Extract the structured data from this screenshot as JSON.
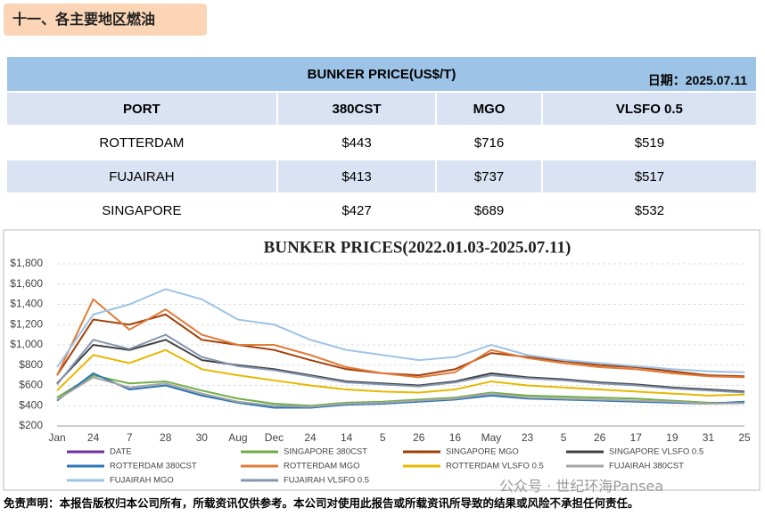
{
  "header": {
    "title": "十一、各主要地区燃油"
  },
  "table": {
    "title": "BUNKER PRICE(US$/T)",
    "date": "日期：2025.07.11",
    "columns": [
      "PORT",
      "380CST",
      "MGO",
      "VLSFO 0.5"
    ],
    "rows": [
      [
        "ROTTERDAM",
        "$443",
        "$716",
        "$519"
      ],
      [
        "FUJAIRAH",
        "$413",
        "$737",
        "$517"
      ],
      [
        "SINGAPORE",
        "$427",
        "$689",
        "$532"
      ]
    ]
  },
  "chart_data": {
    "type": "line",
    "title": "BUNKER PRICES(2022.01.03-2025.07.11)",
    "categories": [
      "Jan",
      "24",
      "7",
      "28",
      "30",
      "Aug",
      "Dec",
      "24",
      "14",
      "5",
      "26",
      "16",
      "May",
      "23",
      "5",
      "26",
      "17",
      "19",
      "31",
      "25"
    ],
    "ylim": [
      200,
      1800
    ],
    "yticks": [
      {
        "value": 200,
        "label": "$200"
      },
      {
        "value": 400,
        "label": "$400"
      },
      {
        "value": 600,
        "label": "$600"
      },
      {
        "value": 800,
        "label": "$800"
      },
      {
        "value": 1000,
        "label": "$1,000"
      },
      {
        "value": 1200,
        "label": "$1,200"
      },
      {
        "value": 1400,
        "label": "$1,400"
      },
      {
        "value": 1600,
        "label": "$1,600"
      },
      {
        "value": 1800,
        "label": "$1,800"
      }
    ],
    "grid": true,
    "series": [
      {
        "name": "DATE",
        "color": "#7030a0",
        "values": [
          null,
          null,
          null,
          null,
          null,
          null,
          null,
          null,
          null,
          null,
          null,
          null,
          null,
          null,
          null,
          null,
          null,
          null,
          null,
          null
        ]
      },
      {
        "name": "SINGAPORE 380CST",
        "color": "#70ad47",
        "values": [
          480,
          700,
          620,
          640,
          550,
          470,
          420,
          400,
          430,
          440,
          460,
          480,
          530,
          500,
          490,
          480,
          470,
          450,
          430,
          430
        ]
      },
      {
        "name": "SINGAPORE MGO",
        "color": "#a0400a",
        "values": [
          700,
          1250,
          1200,
          1300,
          1050,
          1000,
          950,
          850,
          760,
          720,
          700,
          760,
          920,
          880,
          840,
          800,
          780,
          740,
          700,
          690
        ]
      },
      {
        "name": "SINGAPORE VLSFO 0.5",
        "color": "#404040",
        "values": [
          620,
          1000,
          950,
          1050,
          850,
          800,
          760,
          700,
          640,
          620,
          600,
          640,
          720,
          680,
          660,
          630,
          610,
          580,
          560,
          540
        ]
      },
      {
        "name": "ROTTERDAM 380CST",
        "color": "#2e75b6",
        "values": [
          450,
          720,
          560,
          600,
          500,
          430,
          380,
          380,
          410,
          420,
          440,
          460,
          500,
          470,
          460,
          450,
          440,
          430,
          420,
          440
        ]
      },
      {
        "name": "ROTTERDAM MGO",
        "color": "#e07b39",
        "values": [
          700,
          1450,
          1150,
          1350,
          1100,
          1000,
          1000,
          900,
          780,
          720,
          680,
          730,
          950,
          870,
          820,
          780,
          760,
          720,
          690,
          680
        ]
      },
      {
        "name": "ROTTERDAM VLSFO 0.5",
        "color": "#e6b800",
        "values": [
          550,
          900,
          820,
          950,
          760,
          700,
          650,
          600,
          560,
          540,
          530,
          560,
          640,
          600,
          580,
          560,
          540,
          520,
          500,
          510
        ]
      },
      {
        "name": "FUJAIRAH  380CST",
        "color": "#a5a5a5",
        "values": [
          460,
          680,
          580,
          620,
          520,
          440,
          400,
          390,
          420,
          430,
          450,
          470,
          520,
          480,
          470,
          460,
          450,
          440,
          420,
          425
        ]
      },
      {
        "name": "FUJAIRAH MGO",
        "color": "#9dc3e6",
        "values": [
          780,
          1300,
          1400,
          1550,
          1450,
          1250,
          1200,
          1050,
          950,
          900,
          850,
          880,
          1000,
          900,
          850,
          820,
          790,
          760,
          740,
          730
        ]
      },
      {
        "name": "FUJAIRAH VLSFO 0.5",
        "color": "#8497b0",
        "values": [
          610,
          1050,
          960,
          1100,
          880,
          790,
          750,
          690,
          630,
          610,
          590,
          630,
          700,
          670,
          650,
          620,
          600,
          570,
          550,
          530
        ]
      }
    ]
  },
  "footer": {
    "disclaimer": "免责声明：本报告版权归本公司所有，所载资讯仅供参考。本公司对使用此报告或所载资讯所导致的结果或风险不承担任何责任。",
    "watermark": "公众号 · 世纪环海Pansea"
  }
}
